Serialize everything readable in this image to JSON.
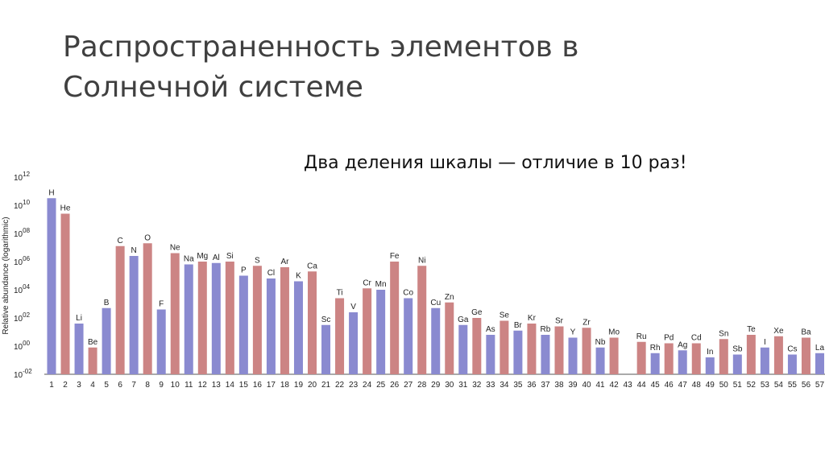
{
  "slide": {
    "title_line1": "Распространенность элементов в",
    "title_line2": "Солнечной системе",
    "subtitle": "Два деления шкалы — отличие в 10 раз!"
  },
  "colors": {
    "odd_bar": "#8a8ad0",
    "even_bar": "#cc8484",
    "text": "#222222"
  },
  "chart_data": {
    "type": "bar",
    "ylabel": "Relative abundance (logarithmic)",
    "y_scale": "log10",
    "ylim_exponent": [
      -2,
      12
    ],
    "y_ticks": [
      {
        "base": "10",
        "exp": "12"
      },
      {
        "base": "10",
        "exp": "10"
      },
      {
        "base": "10",
        "exp": "08"
      },
      {
        "base": "10",
        "exp": "06"
      },
      {
        "base": "10",
        "exp": "04"
      },
      {
        "base": "10",
        "exp": "02"
      },
      {
        "base": "10",
        "exp": "00"
      },
      {
        "base": "10",
        "exp": "-02"
      }
    ],
    "categories": [
      "1",
      "2",
      "3",
      "4",
      "5",
      "6",
      "7",
      "8",
      "9",
      "10",
      "11",
      "12",
      "13",
      "14",
      "15",
      "16",
      "17",
      "18",
      "19",
      "20",
      "21",
      "22",
      "23",
      "24",
      "25",
      "26",
      "27",
      "28",
      "29",
      "30",
      "31",
      "32",
      "33",
      "34",
      "35",
      "36",
      "37",
      "38",
      "39",
      "40",
      "41",
      "42",
      "43",
      "44",
      "45",
      "46",
      "47",
      "48",
      "49",
      "50",
      "51",
      "52",
      "53",
      "54",
      "55",
      "56",
      "57"
    ],
    "symbols": [
      "H",
      "He",
      "Li",
      "Be",
      "B",
      "C",
      "N",
      "O",
      "F",
      "Ne",
      "Na",
      "Mg",
      "Al",
      "Si",
      "P",
      "S",
      "Cl",
      "Ar",
      "K",
      "Ca",
      "Sc",
      "Ti",
      "V",
      "Cr",
      "Mn",
      "Fe",
      "Co",
      "Ni",
      "Cu",
      "Zn",
      "Ga",
      "Ge",
      "As",
      "Se",
      "Br",
      "Kr",
      "Rb",
      "Sr",
      "Y",
      "Zr",
      "Nb",
      "Mo",
      "",
      "Ru",
      "Rh",
      "Pd",
      "Ag",
      "Cd",
      "In",
      "Sn",
      "Sb",
      "Te",
      "I",
      "Xe",
      "Cs",
      "Ba",
      "La"
    ],
    "log10_values": [
      10.5,
      9.4,
      1.6,
      -0.1,
      2.7,
      7.1,
      6.4,
      7.3,
      2.6,
      6.6,
      5.8,
      6.0,
      5.9,
      6.0,
      5.0,
      5.7,
      4.8,
      5.6,
      4.6,
      5.3,
      1.5,
      3.4,
      2.4,
      4.1,
      4.0,
      6.0,
      3.4,
      5.7,
      2.7,
      3.1,
      1.5,
      2.0,
      0.8,
      1.8,
      1.1,
      1.6,
      0.8,
      1.4,
      0.6,
      1.3,
      -0.1,
      0.6,
      null,
      0.3,
      -0.5,
      0.2,
      -0.3,
      0.2,
      -0.8,
      0.5,
      -0.6,
      0.8,
      -0.1,
      0.7,
      -0.6,
      0.6,
      -0.5
    ]
  }
}
